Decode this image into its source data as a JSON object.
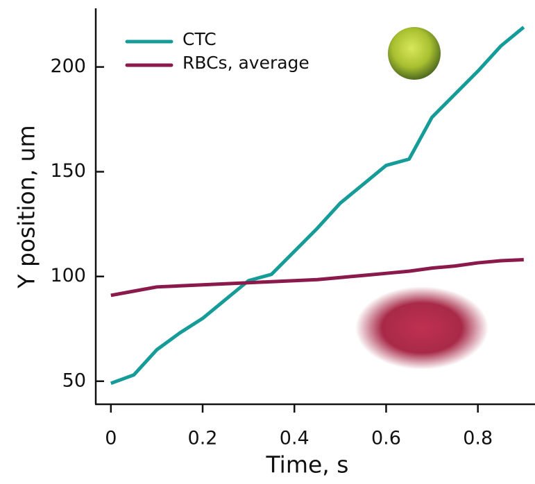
{
  "chart_data": {
    "type": "line",
    "x_label": "Time, s",
    "y_label": "Y position, um",
    "x": [
      0,
      0.05,
      0.1,
      0.15,
      0.2,
      0.25,
      0.3,
      0.35,
      0.4,
      0.45,
      0.5,
      0.55,
      0.6,
      0.65,
      0.7,
      0.75,
      0.8,
      0.85,
      0.9
    ],
    "series": [
      {
        "name": "CTC",
        "color": "#169c98",
        "values": [
          49,
          53,
          65,
          73,
          80,
          89,
          98,
          101,
          112,
          123,
          135,
          144,
          153,
          156,
          176,
          187,
          198,
          210,
          219
        ]
      },
      {
        "name": "RBCs, average",
        "color": "#8b1a4c",
        "values": [
          91,
          93,
          95,
          95.5,
          96,
          96.5,
          97,
          97.5,
          98,
          98.5,
          99.5,
          100.5,
          101.5,
          102.5,
          104,
          105,
          106.5,
          107.5,
          108
        ]
      }
    ],
    "xlim": [
      -0.033,
      0.92
    ],
    "ylim": [
      39,
      228
    ],
    "xticks": [
      0,
      0.2,
      0.4,
      0.6,
      0.8
    ],
    "yticks": [
      50,
      100,
      150,
      200
    ]
  }
}
